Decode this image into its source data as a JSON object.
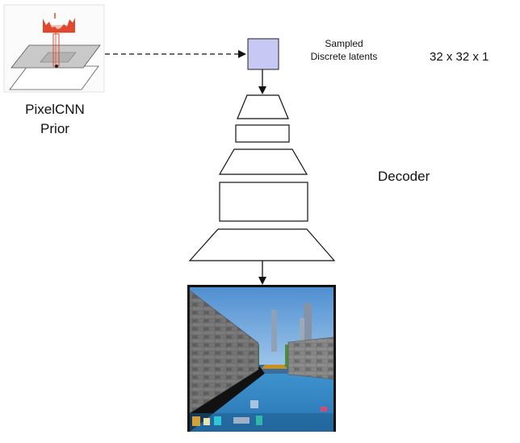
{
  "prior": {
    "line1": "PixelCNN",
    "line2": "Prior"
  },
  "latents": {
    "line1": "Sampled",
    "line2": "Discrete latents"
  },
  "dims_label": "32 x 32 x 1",
  "decoder_label": "Decoder",
  "colors": {
    "latent_fill": "#c8c8f4",
    "histogram": "#e0492f",
    "sky": "#6fa3d8",
    "water": "#2f86c4",
    "wall": "#7b7b7b",
    "stroke": "#111111"
  },
  "icons": [
    "arrow-down-icon",
    "dashed-arrow-icon",
    "histogram-icon"
  ]
}
